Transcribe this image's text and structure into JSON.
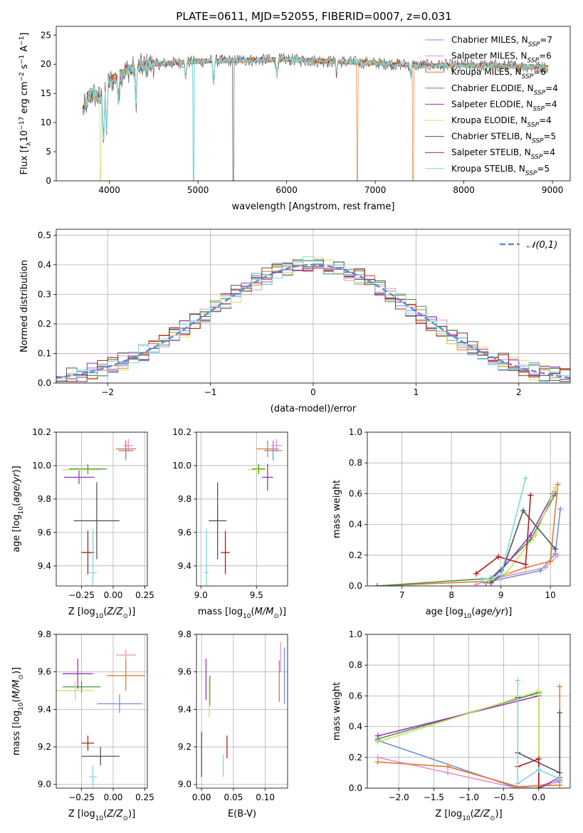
{
  "title": "PLATE=0611, MJD=52055, FIBERID=0007, z=0.031",
  "colors": {
    "Chabrier MILES": "#6f8fe0",
    "Salpeter MILES": "#e58fd0",
    "Kroupa MILES": "#e07a2a",
    "Chabrier ELODIE": "#4a8f4a",
    "Salpeter ELODIE": "#9b30b8",
    "Kroupa ELODIE": "#c8e060",
    "Chabrier STELIB": "#555555",
    "Salpeter STELIB": "#b01c1c",
    "Kroupa STELIB": "#7dd8dc"
  },
  "chart_data": [
    {
      "id": "spectrum",
      "type": "line",
      "xlabel": "wavelength [Angstrom, rest frame]",
      "ylabel": "Flux [f_λ10^-17 erg cm^-2 s^-1 A^-1]",
      "xlim": [
        3400,
        9200
      ],
      "ylim": [
        0,
        26.5
      ],
      "xticks": [
        4000,
        5000,
        6000,
        7000,
        8000,
        9000
      ],
      "yticks": [
        0,
        5,
        10,
        15,
        20,
        25
      ],
      "grid": false,
      "legend": {
        "placement": "top-right",
        "entries": [
          "Chabrier MILES, N_SSP=7",
          "Salpeter MILES, N_SSP=6",
          "Kroupa MILES, N_SSP=6",
          "Chabrier ELODIE, N_SSP=4",
          "Salpeter ELODIE, N_SSP=4",
          "Kroupa ELODIE, N_SSP=4",
          "Chabrier STELIB, N_SSP=5",
          "Salpeter STELIB, N_SSP=4",
          "Kroupa STELIB, N_SSP=5"
        ]
      },
      "data_range": [
        3700,
        8950
      ],
      "continuum": [
        [
          3700,
          12
        ],
        [
          3800,
          15
        ],
        [
          3900,
          14
        ],
        [
          4000,
          17
        ],
        [
          4200,
          19
        ],
        [
          4500,
          20
        ],
        [
          5000,
          20.5
        ],
        [
          5500,
          20.7
        ],
        [
          6000,
          20.8
        ],
        [
          6500,
          20.5
        ],
        [
          7000,
          20.2
        ],
        [
          7500,
          19.8
        ],
        [
          8000,
          19.8
        ],
        [
          8500,
          19.7
        ],
        [
          8950,
          19.5
        ]
      ],
      "absorption": [
        [
          3934,
          9
        ],
        [
          3968,
          8
        ],
        [
          4102,
          5
        ],
        [
          4300,
          6
        ],
        [
          4861,
          3
        ],
        [
          5175,
          4
        ],
        [
          5890,
          3
        ],
        [
          6563,
          2
        ],
        [
          7400,
          2
        ]
      ],
      "drops": [
        {
          "series": "Chabrier MILES",
          "x": 4950
        },
        {
          "series": "Chabrier STELIB",
          "x": 5400
        },
        {
          "series": "Kroupa ELODIE",
          "x": 3900
        },
        {
          "series": "Kroupa MILES",
          "x": 6800
        },
        {
          "series": "Kroupa MILES",
          "x": 7430
        },
        {
          "series": "Kroupa STELIB",
          "x": 4950
        }
      ]
    },
    {
      "id": "residuals",
      "type": "line",
      "xlabel": "(data-model)/error",
      "ylabel": "Normed distribution",
      "xlim": [
        -2.5,
        2.5
      ],
      "ylim": [
        0,
        0.52
      ],
      "xticks": [
        -2,
        -1,
        0,
        1,
        2
      ],
      "yticks": [
        0.0,
        0.1,
        0.2,
        0.3,
        0.4,
        0.5
      ],
      "grid": true,
      "legend": {
        "placement": "top-right",
        "entries": [
          "N(0,1)"
        ]
      },
      "series": [
        {
          "name": "N(0,1)",
          "style": "dashed",
          "color": "#5b8cd6",
          "x": [
            -2.5,
            2.5
          ]
        }
      ],
      "bin_width": 0.1,
      "histogram_peak": 0.4,
      "histogram_sigma": 1.0
    },
    {
      "id": "age-vs-Z",
      "type": "scatter",
      "xlabel": "Z [log10(Z/Z⊙)]",
      "ylabel": "age [log10(age/yr)]",
      "xlim": [
        -0.45,
        0.27
      ],
      "ylim": [
        9.28,
        10.2
      ],
      "xticks": [
        -0.25,
        0.0,
        0.25
      ],
      "yticks": [
        9.4,
        9.6,
        9.8,
        10.0,
        10.2
      ],
      "grid": true,
      "points": [
        {
          "series": "Chabrier MILES",
          "x": 0.1,
          "y": 10.09,
          "xerr": 0.06,
          "yerr": 0.06
        },
        {
          "series": "Salpeter MILES",
          "x": 0.12,
          "y": 10.12,
          "xerr": 0.04,
          "yerr": 0.04
        },
        {
          "series": "Kroupa MILES",
          "x": 0.1,
          "y": 10.1,
          "xerr": 0.08,
          "yerr": 0.05
        },
        {
          "series": "Chabrier ELODIE",
          "x": -0.2,
          "y": 9.98,
          "xerr": 0.15,
          "yerr": 0.03
        },
        {
          "series": "Salpeter ELODIE",
          "x": -0.27,
          "y": 9.93,
          "xerr": 0.12,
          "yerr": 0.04
        },
        {
          "series": "Kroupa ELODIE",
          "x": -0.25,
          "y": 9.975,
          "xerr": 0.15,
          "yerr": 0.03
        },
        {
          "series": "Chabrier STELIB",
          "x": -0.13,
          "y": 9.67,
          "xerr": 0.18,
          "yerr": 0.23
        },
        {
          "series": "Salpeter STELIB",
          "x": -0.2,
          "y": 9.48,
          "xerr": 0.05,
          "yerr": 0.13
        },
        {
          "series": "Kroupa STELIB",
          "x": -0.16,
          "y": 9.36,
          "xerr": 0.03,
          "yerr": 0.26
        }
      ]
    },
    {
      "id": "age-vs-mass",
      "type": "scatter",
      "xlabel": "mass [log10(M/M⊙)]",
      "ylabel": "",
      "xlim": [
        8.96,
        9.78
      ],
      "ylim": [
        9.28,
        10.2
      ],
      "xticks": [
        9.0,
        9.5
      ],
      "yticks": [
        9.4,
        9.6,
        9.8,
        10.0,
        10.2
      ],
      "grid": true,
      "points": [
        {
          "series": "Chabrier MILES",
          "x": 9.65,
          "y": 10.09,
          "xerr": 0.08,
          "yerr": 0.06
        },
        {
          "series": "Salpeter MILES",
          "x": 9.68,
          "y": 10.12,
          "xerr": 0.05,
          "yerr": 0.04
        },
        {
          "series": "Kroupa MILES",
          "x": 9.6,
          "y": 10.1,
          "xerr": 0.1,
          "yerr": 0.05
        },
        {
          "series": "Chabrier ELODIE",
          "x": 9.52,
          "y": 9.98,
          "xerr": 0.06,
          "yerr": 0.03
        },
        {
          "series": "Salpeter ELODIE",
          "x": 9.6,
          "y": 9.93,
          "xerr": 0.05,
          "yerr": 0.08
        },
        {
          "series": "Kroupa ELODIE",
          "x": 9.5,
          "y": 9.975,
          "xerr": 0.08,
          "yerr": 0.03
        },
        {
          "series": "Chabrier STELIB",
          "x": 9.15,
          "y": 9.67,
          "xerr": 0.08,
          "yerr": 0.23
        },
        {
          "series": "Salpeter STELIB",
          "x": 9.22,
          "y": 9.48,
          "xerr": 0.04,
          "yerr": 0.13
        },
        {
          "series": "Kroupa STELIB",
          "x": 9.05,
          "y": 9.36,
          "xerr": 0.02,
          "yerr": 0.26
        }
      ]
    },
    {
      "id": "weight-vs-age",
      "type": "line",
      "xlabel": "age [log10(age/yr)]",
      "ylabel": "mass weight",
      "xlim": [
        6.3,
        10.4
      ],
      "ylim": [
        0,
        1.0
      ],
      "xticks": [
        7,
        8,
        9,
        10
      ],
      "yticks": [
        0.0,
        0.2,
        0.4,
        0.6,
        0.8,
        1.0
      ],
      "grid": true,
      "series": [
        {
          "name": "Chabrier MILES",
          "x": [
            8.8,
            9.8,
            10.1,
            10.2
          ],
          "y": [
            0.03,
            0.1,
            0.21,
            0.5
          ]
        },
        {
          "name": "Salpeter MILES",
          "x": [
            8.5,
            8.9,
            9.9,
            10.15
          ],
          "y": [
            0.01,
            0.05,
            0.12,
            0.2
          ]
        },
        {
          "name": "Kroupa MILES",
          "x": [
            6.5,
            8.7,
            9.5,
            10.0,
            10.15
          ],
          "y": [
            0.0,
            0.03,
            0.12,
            0.16,
            0.66
          ]
        },
        {
          "name": "Chabrier ELODIE",
          "x": [
            6.5,
            8.8,
            9.6,
            10.1
          ],
          "y": [
            0.0,
            0.05,
            0.3,
            0.6
          ]
        },
        {
          "name": "Salpeter ELODIE",
          "x": [
            8.7,
            9.0,
            9.6,
            10.05
          ],
          "y": [
            0.02,
            0.1,
            0.33,
            0.6
          ]
        },
        {
          "name": "Kroupa ELODIE",
          "x": [
            8.7,
            9.1,
            9.7,
            10.1
          ],
          "y": [
            0.03,
            0.08,
            0.33,
            0.64
          ]
        },
        {
          "name": "Chabrier STELIB",
          "x": [
            8.8,
            9.0,
            9.45,
            10.1
          ],
          "y": [
            0.02,
            0.07,
            0.49,
            0.24
          ]
        },
        {
          "name": "Salpeter STELIB",
          "x": [
            8.5,
            8.95,
            9.5,
            9.6
          ],
          "y": [
            0.08,
            0.19,
            0.14,
            0.59
          ]
        },
        {
          "name": "Kroupa STELIB",
          "x": [
            8.6,
            9.0,
            9.5
          ],
          "y": [
            0.04,
            0.07,
            0.7
          ]
        }
      ]
    },
    {
      "id": "mass-vs-Z",
      "type": "scatter",
      "xlabel": "Z [log10(Z/Z⊙)]",
      "ylabel": "mass [log10(M/M⊙)]",
      "xlim": [
        -0.45,
        0.27
      ],
      "ylim": [
        8.98,
        9.8
      ],
      "xticks": [
        -0.25,
        0.0,
        0.25
      ],
      "yticks": [
        9.0,
        9.2,
        9.4,
        9.6,
        9.8
      ],
      "grid": true,
      "points": [
        {
          "series": "Chabrier MILES",
          "x": 0.05,
          "y": 9.43,
          "xerr": 0.18,
          "yerr": 0.05
        },
        {
          "series": "Salpeter MILES",
          "x": 0.1,
          "y": 9.69,
          "xerr": 0.08,
          "yerr": 0.03
        },
        {
          "series": "Kroupa MILES",
          "x": 0.1,
          "y": 9.58,
          "xerr": 0.15,
          "yerr": 0.08
        },
        {
          "series": "Chabrier ELODIE",
          "x": -0.25,
          "y": 9.52,
          "xerr": 0.15,
          "yerr": 0.03
        },
        {
          "series": "Salpeter ELODIE",
          "x": -0.28,
          "y": 9.59,
          "xerr": 0.12,
          "yerr": 0.08
        },
        {
          "series": "Kroupa ELODIE",
          "x": -0.3,
          "y": 9.5,
          "xerr": 0.15,
          "yerr": 0.05
        },
        {
          "series": "Chabrier STELIB",
          "x": -0.1,
          "y": 9.15,
          "xerr": 0.15,
          "yerr": 0.05
        },
        {
          "series": "Salpeter STELIB",
          "x": -0.2,
          "y": 9.22,
          "xerr": 0.05,
          "yerr": 0.04
        },
        {
          "series": "Kroupa STELIB",
          "x": -0.16,
          "y": 9.04,
          "xerr": 0.03,
          "yerr": 0.06
        }
      ]
    },
    {
      "id": "mass-vs-ebv",
      "type": "scatter",
      "xlabel": "E(B-V)",
      "ylabel": "",
      "xlim": [
        -0.008,
        0.135
      ],
      "ylim": [
        8.98,
        9.8
      ],
      "xticks": [
        0.0,
        0.05,
        0.1
      ],
      "yticks": [
        9.0,
        9.2,
        9.4,
        9.6,
        9.8
      ],
      "grid": true,
      "points": [
        {
          "series": "Chabrier MILES",
          "x": 0.13,
          "y": 9.58,
          "yerr": 0.15
        },
        {
          "series": "Salpeter MILES",
          "x": 0.124,
          "y": 9.68,
          "yerr": 0.08
        },
        {
          "series": "Kroupa MILES",
          "x": 0.122,
          "y": 9.55,
          "yerr": 0.11
        },
        {
          "series": "Chabrier ELODIE",
          "x": 0.013,
          "y": 9.5,
          "yerr": 0.08
        },
        {
          "series": "Salpeter ELODIE",
          "x": 0.007,
          "y": 9.56,
          "yerr": 0.11
        },
        {
          "series": "Kroupa ELODIE",
          "x": 0.012,
          "y": 9.46,
          "yerr": 0.1
        },
        {
          "series": "Chabrier STELIB",
          "x": 0.0,
          "y": 9.16,
          "yerr": 0.12
        },
        {
          "series": "Salpeter STELIB",
          "x": 0.04,
          "y": 9.2,
          "yerr": 0.06
        },
        {
          "series": "Kroupa STELIB",
          "x": 0.034,
          "y": 9.1,
          "yerr": 0.06
        }
      ]
    },
    {
      "id": "weight-vs-Z",
      "type": "line",
      "xlabel": "Z [log10(Z/Z⊙)]",
      "ylabel": "mass weight",
      "xlim": [
        -2.45,
        0.45
      ],
      "ylim": [
        0,
        1.0
      ],
      "xticks": [
        -2.0,
        -1.5,
        -1.0,
        -0.5,
        0.0
      ],
      "yticks": [
        0.0,
        0.2,
        0.4,
        0.6,
        0.8,
        1.0
      ],
      "grid": true,
      "series": [
        {
          "name": "Chabrier MILES",
          "x": [
            -2.3,
            -0.3,
            0.0,
            0.3
          ],
          "y": [
            0.31,
            0.0,
            0.0,
            0.05
          ]
        },
        {
          "name": "Salpeter MILES",
          "x": [
            -2.3,
            -1.3,
            -0.3,
            0.3
          ],
          "y": [
            0.2,
            0.1,
            0.0,
            0.04
          ]
        },
        {
          "name": "Kroupa MILES",
          "x": [
            -2.3,
            -1.3,
            -0.3,
            0.3,
            0.3
          ],
          "y": [
            0.17,
            0.14,
            0.01,
            0.02,
            0.66
          ]
        },
        {
          "name": "Chabrier ELODIE",
          "x": [
            -2.3,
            0.0,
            0.0
          ],
          "y": [
            0.32,
            0.62,
            0.02
          ]
        },
        {
          "name": "Salpeter ELODIE",
          "x": [
            -2.3,
            0.0,
            0.0,
            0.3
          ],
          "y": [
            0.34,
            0.6,
            0.0,
            0.07
          ]
        },
        {
          "name": "Kroupa ELODIE",
          "x": [
            -2.3,
            0.0,
            0.0
          ],
          "y": [
            0.3,
            0.63,
            0.02
          ]
        },
        {
          "name": "Chabrier STELIB",
          "x": [
            -0.3,
            -0.3,
            0.3,
            0.3
          ],
          "y": [
            0.59,
            0.23,
            0.1,
            0.49
          ]
        },
        {
          "name": "Salpeter STELIB",
          "x": [
            -0.3,
            0.0,
            0.0
          ],
          "y": [
            0.14,
            0.19,
            0.0
          ]
        },
        {
          "name": "Kroupa STELIB",
          "x": [
            -0.3,
            -0.3,
            0.0,
            0.3
          ],
          "y": [
            0.7,
            0.03,
            0.12,
            0.06
          ]
        }
      ]
    }
  ]
}
